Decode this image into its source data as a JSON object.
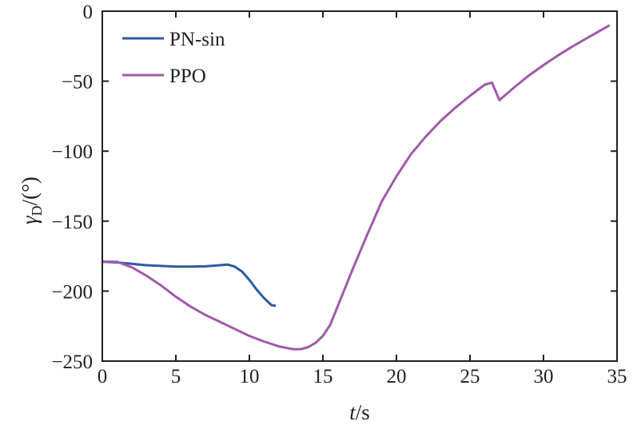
{
  "chart_data": {
    "type": "line",
    "title": "",
    "xlabel": {
      "var": "t",
      "unit": "/s"
    },
    "ylabel": {
      "var": "γ",
      "sub": "D",
      "unit": "/(°)"
    },
    "xlim": [
      0,
      35
    ],
    "ylim": [
      -250,
      0
    ],
    "xticks": [
      0,
      5,
      10,
      15,
      20,
      25,
      30,
      35
    ],
    "xtick_labels": [
      "0",
      "5",
      "10",
      "15",
      "20",
      "25",
      "30",
      "35"
    ],
    "yticks": [
      0,
      -50,
      -100,
      -150,
      -200,
      -250
    ],
    "ytick_labels": [
      "0",
      "−50",
      "−100",
      "−150",
      "−200",
      "−250"
    ],
    "grid": false,
    "legend_position": "top-left",
    "series": [
      {
        "name": "PN-sin",
        "color": "#2e5aa0",
        "x": [
          0,
          1,
          2,
          3,
          4,
          5,
          6,
          7,
          8,
          8.5,
          9,
          9.5,
          10,
          10.5,
          11,
          11.5,
          11.8
        ],
        "y": [
          -179,
          -179.5,
          -180.5,
          -181.5,
          -182,
          -182.5,
          -182.5,
          -182.3,
          -181.5,
          -181,
          -182.5,
          -186,
          -192,
          -199,
          -205,
          -210,
          -210.5
        ]
      },
      {
        "name": "PPO",
        "color": "#a05aaa",
        "x": [
          0,
          1,
          2,
          3,
          4,
          5,
          6,
          7,
          8,
          9,
          10,
          11,
          12,
          13,
          13.5,
          14,
          14.5,
          15,
          15.5,
          16,
          17,
          18,
          19,
          20,
          20.5,
          21,
          22,
          23,
          24,
          25,
          26,
          26.5,
          27,
          28,
          29,
          30,
          31,
          32,
          33,
          34,
          34.5
        ],
        "y": [
          -179,
          -179,
          -183,
          -189,
          -196,
          -204,
          -211,
          -217,
          -222,
          -227,
          -232,
          -236,
          -239.5,
          -241.5,
          -241.5,
          -240,
          -237,
          -232,
          -224,
          -211,
          -185,
          -160,
          -136,
          -118,
          -110,
          -102,
          -89.5,
          -78.5,
          -69,
          -60.5,
          -52.5,
          -51,
          -63.5,
          -54.5,
          -46,
          -38.5,
          -31.5,
          -25,
          -19,
          -13,
          -10
        ]
      }
    ]
  }
}
